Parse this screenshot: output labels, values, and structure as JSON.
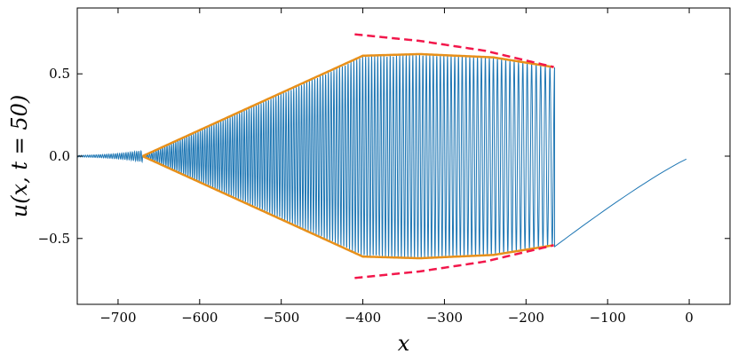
{
  "chart_data": {
    "type": "line",
    "title": "",
    "xlabel": "x",
    "ylabel": "u(x, t = 50)",
    "xlim": [
      -750,
      50
    ],
    "ylim": [
      -0.9,
      0.9
    ],
    "grid": false,
    "legend": "none",
    "x_ticks": [
      -700,
      -600,
      -500,
      -400,
      -300,
      -200,
      -100,
      0
    ],
    "x_tick_labels": [
      "−700",
      "−600",
      "−500",
      "−400",
      "−300",
      "−200",
      "−100",
      "0"
    ],
    "y_ticks": [
      -0.5,
      0.0,
      0.5
    ],
    "y_tick_labels": [
      "−0.5",
      "0.0",
      "0.5"
    ],
    "series": [
      {
        "color": "#1f77b4",
        "style": "solid",
        "description_points": {
          "oscillation_region_x": [
            -750,
            -165
          ],
          "ramp_x": [
            -165,
            5,
            50
          ],
          "ramp_y": [
            -0.55,
            0.0,
            0.0
          ]
        }
      },
      {
        "color": "#e8901a",
        "style": "solid",
        "x": [
          -670,
          -400,
          -330,
          -240,
          -165
        ],
        "y_upper": [
          0.0,
          0.61,
          0.62,
          0.6,
          0.54
        ],
        "y_lower": [
          0.0,
          -0.61,
          -0.62,
          -0.6,
          -0.54
        ]
      },
      {
        "color": "#f2174b",
        "style": "dashed",
        "x": [
          -410,
          -330,
          -250,
          -165
        ],
        "y_upper": [
          0.74,
          0.7,
          0.64,
          0.54
        ],
        "y_lower": [
          -0.74,
          -0.7,
          -0.64,
          -0.54
        ]
      }
    ]
  }
}
